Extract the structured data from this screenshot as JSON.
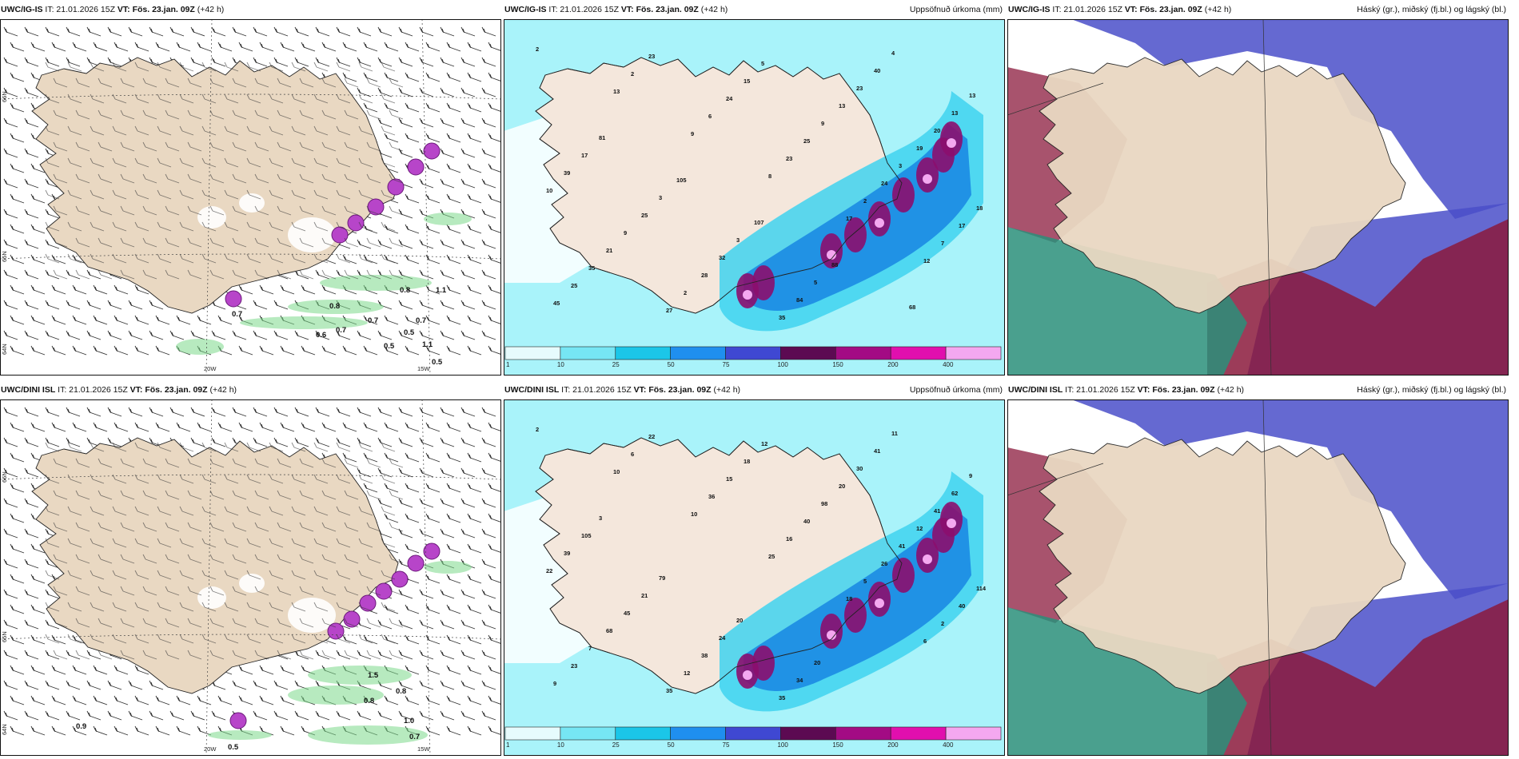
{
  "panels": [
    {
      "id": "p1",
      "model": "UWC/IG-IS",
      "it_label": "IT: 21.01.2026 15Z",
      "vt_label": "VT: Fös. 23.jan. 09Z",
      "lead": "(+42 h)",
      "right_title": "",
      "lat_labels": [
        "66N",
        "65N",
        "64N"
      ],
      "lon_labels": [
        "20W",
        "15W"
      ],
      "values": [
        "0.7",
        "0.8",
        "1.1",
        "0.5",
        "0.6",
        "0.8",
        "0.7",
        "0.5",
        "0.5",
        "1.1",
        "0.7",
        "0.7"
      ]
    },
    {
      "id": "p2",
      "model": "UWC/IG-IS",
      "it_label": "IT: 21.01.2026 15Z",
      "vt_label": "VT: Fös. 23.jan. 09Z",
      "lead": "(+42 h)",
      "right_title": "Uppsöfnuð úrkoma (mm)",
      "values": [
        "2",
        "13",
        "9",
        "8",
        "17",
        "12",
        "45",
        "2",
        "6",
        "23",
        "2",
        "7",
        "25",
        "23",
        "24",
        "25",
        "24",
        "17",
        "35",
        "27",
        "15",
        "9",
        "3",
        "18",
        "21",
        "2",
        "5",
        "13",
        "19",
        "10",
        "9",
        "28",
        "35",
        "23",
        "20",
        "39",
        "25",
        "32",
        "84",
        "40",
        "13",
        "17",
        "3",
        "3",
        "5",
        "4",
        "13",
        "81",
        "105",
        "107",
        "88",
        "68"
      ]
    },
    {
      "id": "p3",
      "model": "UWC/IG-IS",
      "it_label": "IT: 21.01.2026 15Z",
      "vt_label": "VT: Fös. 23.jan. 09Z",
      "lead": "(+42 h)",
      "right_title": "Háský (gr.), miðský (fj.bl.) og lágský (bl.)"
    },
    {
      "id": "p4",
      "model": "UWC/DINI ISL",
      "it_label": "IT: 21.01.2026 15Z",
      "vt_label": "VT: Fös. 23.jan. 09Z",
      "lead": "(+42 h)",
      "right_title": "",
      "lat_labels": [
        "66N",
        "65N",
        "64N"
      ],
      "lon_labels": [
        "20W",
        "15W"
      ],
      "values": [
        "0.9",
        "0.8",
        "1.0",
        "0.7",
        "0.5",
        "1.5",
        "0.8"
      ]
    },
    {
      "id": "p5",
      "model": "UWC/DINI ISL",
      "it_label": "IT: 21.01.2026 15Z",
      "vt_label": "VT: Fös. 23.jan. 09Z",
      "lead": "(+42 h)",
      "right_title": "Uppsöfnuð úrkoma (mm)",
      "values": [
        "2",
        "10",
        "10",
        "25",
        "18",
        "6",
        "9",
        "6",
        "36",
        "16",
        "5",
        "2",
        "23",
        "22",
        "15",
        "40",
        "26",
        "40",
        "7",
        "35",
        "18",
        "98",
        "41",
        "114",
        "68",
        "12",
        "12",
        "20",
        "12",
        "22",
        "45",
        "38",
        "35",
        "30",
        "41",
        "39",
        "21",
        "24",
        "34",
        "41",
        "62",
        "105",
        "79",
        "20",
        "20",
        "11",
        "9",
        "3"
      ]
    },
    {
      "id": "p6",
      "model": "UWC/DINI ISL",
      "it_label": "IT: 21.01.2026 15Z",
      "vt_label": "VT: Fös. 23.jan. 09Z",
      "lead": "(+42 h)",
      "right_title": "Háský (gr.), miðský (fj.bl.) og lágský (bl.)"
    }
  ],
  "colorbar": {
    "ticks": [
      "1",
      "10",
      "25",
      "50",
      "75",
      "100",
      "150",
      "200",
      "400"
    ],
    "colors": [
      "#e6fbfd",
      "#76e6f4",
      "#1bc6e8",
      "#1f8fef",
      "#3f48d2",
      "#5c0a52",
      "#a30b84",
      "#e10fae",
      "#f4a8f0"
    ]
  },
  "colors": {
    "land": "#e9d8c2",
    "precip_light": "#a9f3fa",
    "precip_mid": "#3fd2ef",
    "precip_heavy": "#1b8be3",
    "precip_extreme": "#8b0e6e",
    "snow_green": "#7bd98a",
    "high_cloud": "#2a8f7a",
    "mid_cloud": "#8b1a3c",
    "low_cloud": "#4a4fc9"
  }
}
